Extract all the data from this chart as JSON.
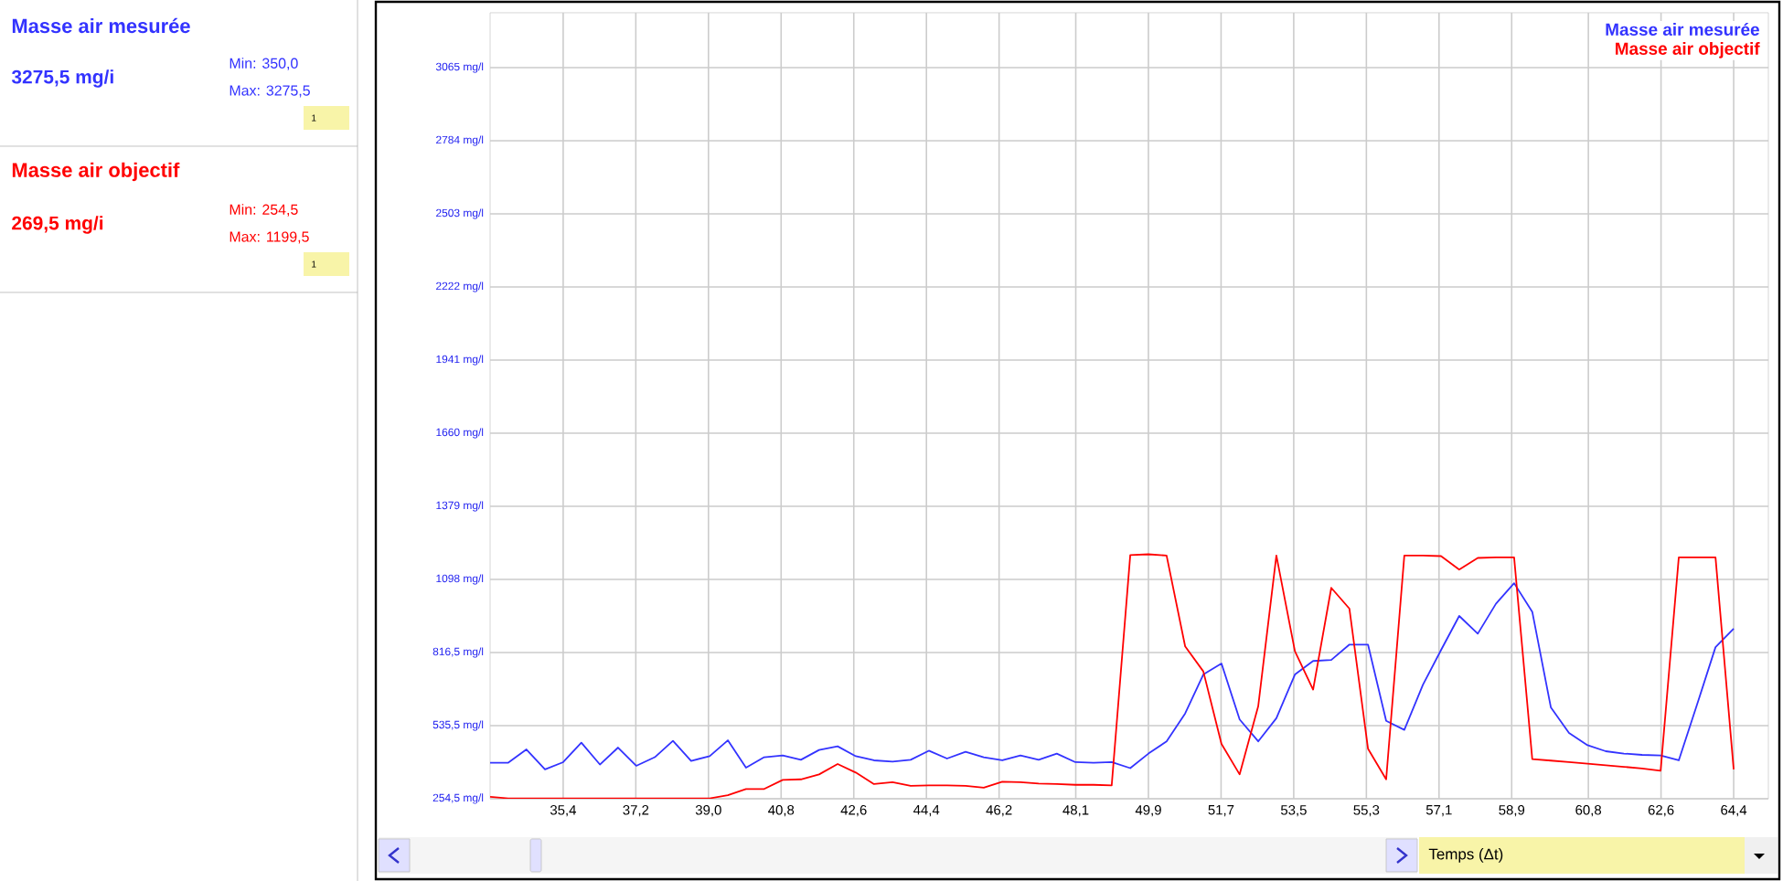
{
  "chart_data": {
    "type": "line",
    "xlabel": "Temps (Δt)",
    "x": [
      33.59,
      34.04,
      34.49,
      34.95,
      35.4,
      35.85,
      36.31,
      36.76,
      37.21,
      37.67,
      38.12,
      38.57,
      39.03,
      39.48,
      39.93,
      40.38,
      40.84,
      41.29,
      41.74,
      42.2,
      42.65,
      43.1,
      43.56,
      44.01,
      44.46,
      44.91,
      45.37,
      45.82,
      46.28,
      46.73,
      47.18,
      47.63,
      48.09,
      48.54,
      48.99,
      49.45,
      49.9,
      50.35,
      50.81,
      51.26,
      51.71,
      52.16,
      52.62,
      53.07,
      53.53,
      53.98,
      54.43,
      54.88,
      55.34,
      55.79,
      56.24,
      56.7,
      57.15,
      57.6,
      58.06,
      58.51,
      58.96,
      59.41,
      59.87,
      60.32,
      60.78,
      61.23,
      61.68,
      62.13,
      62.59,
      63.04,
      63.49,
      63.95,
      64.4
    ],
    "series": [
      {
        "name": "Masse air mesurée",
        "color": "#3333ff",
        "values": [
          393,
          393,
          444,
          367,
          395,
          470,
          386,
          451,
          381,
          414,
          477,
          400,
          418,
          479,
          374,
          414,
          421,
          404,
          442,
          456,
          418,
          402,
          397,
          404,
          439,
          409,
          435,
          414,
          402,
          421,
          404,
          428,
          395,
          393,
          395,
          372,
          428,
          475,
          582,
          732,
          774,
          559,
          475,
          564,
          732,
          784,
          788,
          847,
          847,
          554,
          519,
          692,
          826,
          957,
          889,
          1004,
          1083,
          973,
          606,
          507,
          460,
          437,
          428,
          423,
          421,
          402,
          615,
          837,
          908
        ]
      },
      {
        "name": "Masse air objectif",
        "color": "#ff0000",
        "values": [
          262,
          256,
          256,
          256,
          256,
          256,
          256,
          256,
          256,
          256,
          256,
          256,
          256,
          268,
          292,
          292,
          327,
          329,
          348,
          388,
          355,
          311,
          318,
          304,
          306,
          306,
          304,
          297,
          320,
          318,
          313,
          311,
          308,
          308,
          306,
          1191,
          1194,
          1189,
          840,
          744,
          465,
          348,
          610,
          1189,
          821,
          674,
          1065,
          985,
          447,
          329,
          1189,
          1189,
          1187,
          1135,
          1180,
          1182,
          1182,
          407,
          401,
          395,
          389,
          383,
          377,
          371,
          362,
          1182,
          1182,
          1182,
          367
        ]
      }
    ],
    "xlim": [
      33.59,
      65.26
    ],
    "xticks": [
      {
        "value": 35.4,
        "label": "35,4"
      },
      {
        "value": 37.2,
        "label": "37,2"
      },
      {
        "value": 39.0,
        "label": "39,0"
      },
      {
        "value": 40.8,
        "label": "40,8"
      },
      {
        "value": 42.6,
        "label": "42,6"
      },
      {
        "value": 44.4,
        "label": "44,4"
      },
      {
        "value": 46.2,
        "label": "46,2"
      },
      {
        "value": 48.1,
        "label": "48,1"
      },
      {
        "value": 49.9,
        "label": "49,9"
      },
      {
        "value": 51.7,
        "label": "51,7"
      },
      {
        "value": 53.5,
        "label": "53,5"
      },
      {
        "value": 55.3,
        "label": "55,3"
      },
      {
        "value": 57.1,
        "label": "57,1"
      },
      {
        "value": 58.9,
        "label": "58,9"
      },
      {
        "value": 60.8,
        "label": "60,8"
      },
      {
        "value": 62.6,
        "label": "62,6"
      },
      {
        "value": 64.4,
        "label": "64,4"
      }
    ],
    "ylim": [
      254.5,
      3275.5
    ],
    "yticks": [
      {
        "value": 254.5,
        "label": "254,5 mg/l"
      },
      {
        "value": 535.5,
        "label": "535,5 mg/l"
      },
      {
        "value": 816.5,
        "label": "816,5 mg/l"
      },
      {
        "value": 1097.5,
        "label": "1098 mg/l"
      },
      {
        "value": 1378.5,
        "label": "1379 mg/l"
      },
      {
        "value": 1659.5,
        "label": "1660 mg/l"
      },
      {
        "value": 1940.5,
        "label": "1941 mg/l"
      },
      {
        "value": 2221.5,
        "label": "2222 mg/l"
      },
      {
        "value": 2502.5,
        "label": "2503 mg/l"
      },
      {
        "value": 2783.5,
        "label": "2784 mg/l"
      },
      {
        "value": 3064.5,
        "label": "3065 mg/l"
      }
    ],
    "grid": true,
    "legend": "top right",
    "marker": "none",
    "line_style": "solid",
    "annotations": [
      "Masse air mesurée",
      "3275,5 mg/i",
      "Min: 350,0",
      "Max: 3275,5",
      "1",
      "Masse air objectif",
      "269,5 mg/i",
      "Min: 254,5",
      "Max: 1199,5",
      "1"
    ]
  }
}
